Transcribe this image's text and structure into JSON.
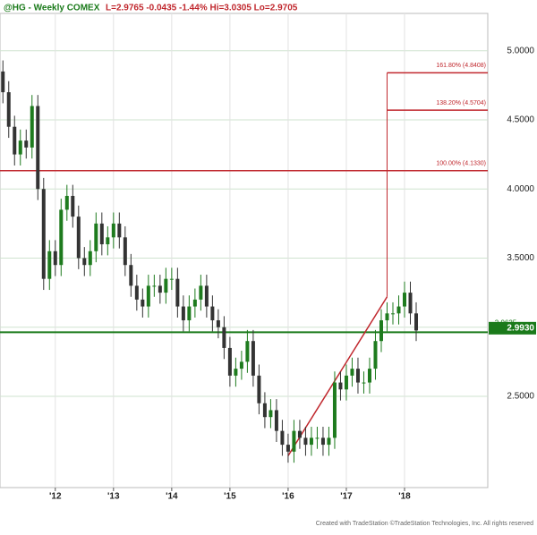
{
  "chart_data": {
    "type": "candlestick",
    "title": "@HG - Weekly  COMEX",
    "subtitle": "L=2.9765  -0.0435  -1.44%  Hi=3.0305  Lo=2.9705",
    "footer": "Created with TradeStation ©TradeStation Technologies, Inc. All rights reserved",
    "x": [
      2011.1,
      2011.2,
      2011.3,
      2011.4,
      2011.5,
      2011.6,
      2011.7,
      2011.8,
      2011.9,
      2012.0,
      2012.1,
      2012.2,
      2012.3,
      2012.4,
      2012.5,
      2012.6,
      2012.7,
      2012.8,
      2012.9,
      2013.0,
      2013.1,
      2013.2,
      2013.3,
      2013.4,
      2013.5,
      2013.6,
      2013.7,
      2013.8,
      2013.9,
      2014.0,
      2014.1,
      2014.2,
      2014.3,
      2014.4,
      2014.5,
      2014.6,
      2014.7,
      2014.8,
      2014.9,
      2015.0,
      2015.1,
      2015.2,
      2015.3,
      2015.4,
      2015.5,
      2015.6,
      2015.7,
      2015.8,
      2015.9,
      2016.0,
      2016.1,
      2016.2,
      2016.3,
      2016.4,
      2016.5,
      2016.6,
      2016.7,
      2016.8,
      2016.9,
      2017.0,
      2017.1,
      2017.2,
      2017.3,
      2017.4,
      2017.5,
      2017.6,
      2017.7,
      2017.8,
      2017.9,
      2018.0,
      2018.1,
      2018.2
    ],
    "open": [
      4.85,
      4.7,
      4.45,
      4.25,
      4.35,
      4.3,
      4.6,
      4.0,
      3.35,
      3.55,
      3.45,
      3.85,
      3.95,
      3.8,
      3.5,
      3.45,
      3.55,
      3.75,
      3.6,
      3.65,
      3.75,
      3.65,
      3.45,
      3.3,
      3.2,
      3.15,
      3.3,
      3.3,
      3.25,
      3.35,
      3.35,
      3.15,
      3.05,
      3.15,
      3.2,
      3.3,
      3.15,
      3.05,
      3.0,
      2.85,
      2.65,
      2.7,
      2.75,
      2.9,
      2.65,
      2.45,
      2.35,
      2.4,
      2.25,
      2.15,
      2.1,
      2.25,
      2.2,
      2.15,
      2.2,
      2.2,
      2.15,
      2.2,
      2.6,
      2.55,
      2.65,
      2.7,
      2.6,
      2.6,
      2.7,
      2.9,
      3.05,
      3.1,
      3.1,
      3.15,
      3.25,
      3.1
    ],
    "high": [
      4.93,
      4.78,
      4.53,
      4.43,
      4.43,
      4.68,
      4.68,
      4.08,
      3.63,
      3.63,
      3.93,
      4.03,
      4.03,
      3.88,
      3.58,
      3.63,
      3.83,
      3.83,
      3.73,
      3.83,
      3.83,
      3.73,
      3.53,
      3.38,
      3.28,
      3.38,
      3.38,
      3.38,
      3.43,
      3.43,
      3.43,
      3.23,
      3.23,
      3.28,
      3.38,
      3.38,
      3.23,
      3.13,
      3.08,
      2.93,
      2.78,
      2.83,
      2.98,
      2.98,
      2.73,
      2.53,
      2.48,
      2.48,
      2.33,
      2.23,
      2.33,
      2.33,
      2.28,
      2.28,
      2.28,
      2.28,
      2.28,
      2.68,
      2.68,
      2.73,
      2.78,
      2.78,
      2.68,
      2.78,
      2.98,
      3.13,
      3.18,
      3.18,
      3.23,
      3.33,
      3.33,
      3.18
    ],
    "low": [
      4.62,
      4.37,
      4.17,
      4.17,
      4.22,
      4.22,
      3.92,
      3.27,
      3.27,
      3.37,
      3.37,
      3.77,
      3.72,
      3.42,
      3.37,
      3.37,
      3.47,
      3.52,
      3.52,
      3.57,
      3.57,
      3.37,
      3.22,
      3.12,
      3.07,
      3.07,
      3.22,
      3.17,
      3.17,
      3.27,
      3.07,
      2.97,
      2.97,
      3.07,
      3.12,
      3.07,
      2.97,
      2.92,
      2.77,
      2.57,
      2.57,
      2.62,
      2.67,
      2.57,
      2.37,
      2.27,
      2.27,
      2.17,
      2.07,
      2.02,
      2.02,
      2.12,
      2.07,
      2.07,
      2.12,
      2.07,
      2.07,
      2.12,
      2.47,
      2.47,
      2.57,
      2.52,
      2.52,
      2.52,
      2.62,
      2.82,
      2.97,
      3.02,
      3.02,
      3.07,
      3.02,
      2.9
    ],
    "close": [
      4.7,
      4.45,
      4.25,
      4.35,
      4.3,
      4.6,
      4.0,
      3.35,
      3.55,
      3.45,
      3.85,
      3.95,
      3.8,
      3.5,
      3.45,
      3.55,
      3.75,
      3.6,
      3.65,
      3.75,
      3.65,
      3.45,
      3.3,
      3.2,
      3.15,
      3.3,
      3.3,
      3.25,
      3.35,
      3.35,
      3.15,
      3.05,
      3.15,
      3.2,
      3.3,
      3.15,
      3.05,
      3.0,
      2.85,
      2.65,
      2.7,
      2.75,
      2.9,
      2.65,
      2.45,
      2.35,
      2.4,
      2.25,
      2.15,
      2.1,
      2.25,
      2.2,
      2.15,
      2.2,
      2.2,
      2.15,
      2.2,
      2.6,
      2.55,
      2.65,
      2.7,
      2.6,
      2.6,
      2.7,
      2.9,
      3.05,
      3.1,
      3.1,
      3.15,
      3.25,
      3.1,
      2.9765
    ],
    "up_color": "#1e7b1e",
    "down_color": "#333333",
    "xlim": [
      2011.05,
      2019.43
    ],
    "ylim": [
      1.84,
      5.27
    ],
    "xticks": [
      {
        "value": 2012,
        "label": "'12"
      },
      {
        "value": 2013,
        "label": "'13"
      },
      {
        "value": 2014,
        "label": "'14"
      },
      {
        "value": 2015,
        "label": "'15"
      },
      {
        "value": 2016,
        "label": "'16"
      },
      {
        "value": 2017,
        "label": "'17"
      },
      {
        "value": 2018,
        "label": "'18"
      }
    ],
    "yticks": [
      {
        "value": 2.5,
        "label": "2.5000"
      },
      {
        "value": 3,
        "label": "3.0000"
      },
      {
        "value": 3.5,
        "label": "3.5000"
      },
      {
        "value": 4,
        "label": "4.0000"
      },
      {
        "value": 4.5,
        "label": "4.5000"
      },
      {
        "value": 5,
        "label": "5.0000"
      }
    ],
    "grid": true,
    "fib_color": "#c0272d",
    "fib_levels": [
      {
        "value": 4.8408,
        "label": "161.80% (4.8408)",
        "x_start": 2017.7
      },
      {
        "value": 4.5704,
        "label": "138.20% (4.5704)",
        "x_start": 2017.7
      },
      {
        "value": 4.133,
        "label": "100.00% (4.1330)",
        "x_start": 2011.05
      }
    ],
    "trendline": {
      "x": [
        2016.0,
        2017.7
      ],
      "y": [
        2.07,
        3.22
      ]
    },
    "support": {
      "value": 2.9635,
      "label": "2.9635",
      "color": "#1a7a1a"
    },
    "last_price": {
      "value": 2.993,
      "label": "2.9930",
      "color": "#1a7a1a"
    }
  }
}
